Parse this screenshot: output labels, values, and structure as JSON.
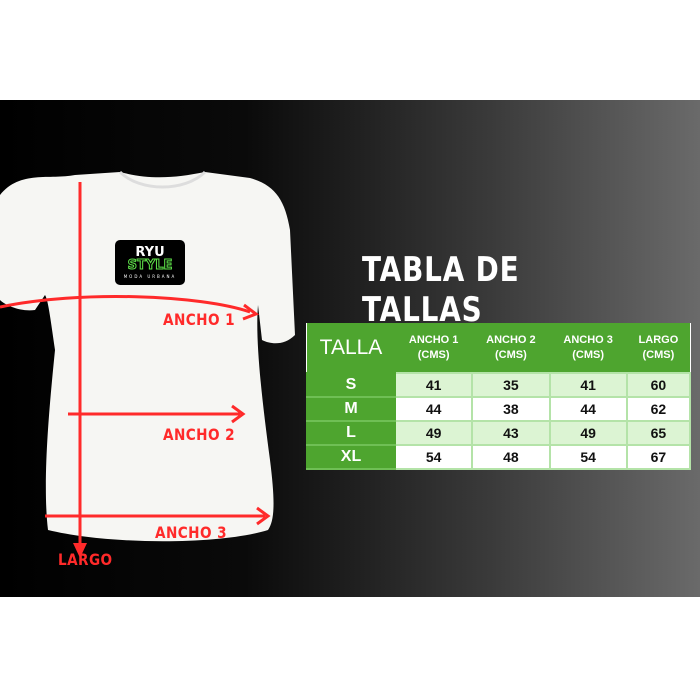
{
  "title": "TABLA DE TALLAS",
  "logo": {
    "line1": "RYU",
    "line2": "STYLE",
    "line3": "MODA URBANA"
  },
  "measure_labels": {
    "ancho1": "ANCHO 1",
    "ancho2": "ANCHO 2",
    "ancho3": "ANCHO 3",
    "largo": "LARGO"
  },
  "colors": {
    "header_green": "#4ea52f",
    "alt_row": "#dcf4d3",
    "arrow_red": "#ff2a2a"
  },
  "table": {
    "headers": [
      {
        "line1": "TALLA",
        "line2": ""
      },
      {
        "line1": "ANCHO 1",
        "line2": "(CMS)"
      },
      {
        "line1": "ANCHO 2",
        "line2": "(CMS)"
      },
      {
        "line1": "ANCHO 3",
        "line2": "(CMS)"
      },
      {
        "line1": "LARGO",
        "line2": "(CMS)"
      }
    ],
    "rows": [
      [
        "S",
        "41",
        "35",
        "41",
        "60"
      ],
      [
        "M",
        "44",
        "38",
        "44",
        "62"
      ],
      [
        "L",
        "49",
        "43",
        "49",
        "65"
      ],
      [
        "XL",
        "54",
        "48",
        "54",
        "67"
      ]
    ]
  }
}
